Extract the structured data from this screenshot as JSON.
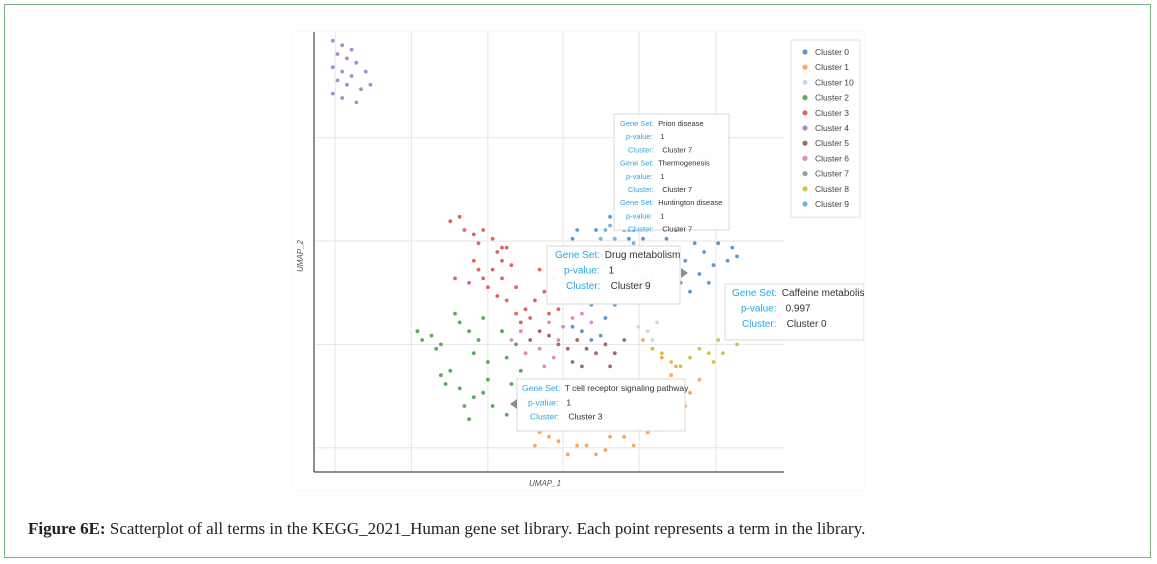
{
  "caption": {
    "label": "Figure 6E:",
    "text": " Scatterplot of all terms in the KEGG_2021_Human gene set library. Each point represents a term in the library."
  },
  "chart_data": {
    "type": "scatter",
    "xlabel": "UMAP_1",
    "ylabel": "UMAP_2",
    "xlim": [
      0,
      100
    ],
    "ylim": [
      0,
      100
    ],
    "grid": true,
    "legend_position": "top-right",
    "series": [
      {
        "name": "Cluster 0",
        "color": "#5b9bd5",
        "points": [
          [
            55,
            53
          ],
          [
            57,
            50
          ],
          [
            58,
            48
          ],
          [
            56,
            45
          ],
          [
            59,
            46
          ],
          [
            60,
            51
          ],
          [
            61,
            49
          ],
          [
            62,
            47
          ],
          [
            58,
            43
          ],
          [
            60,
            42
          ],
          [
            57,
            40
          ],
          [
            61,
            44
          ],
          [
            63,
            45
          ],
          [
            56,
            55
          ],
          [
            54,
            51
          ],
          [
            64,
            50
          ],
          [
            62,
            41
          ],
          [
            59,
            38
          ],
          [
            60,
            55
          ],
          [
            63,
            58
          ],
          [
            66,
            55
          ],
          [
            67,
            58
          ],
          [
            68,
            55
          ],
          [
            70,
            53
          ],
          [
            69,
            57
          ],
          [
            71,
            49
          ],
          [
            72,
            45
          ],
          [
            73,
            51
          ],
          [
            74,
            48
          ],
          [
            75,
            53
          ],
          [
            76,
            50
          ],
          [
            77,
            55
          ],
          [
            79,
            48
          ],
          [
            81,
            52
          ],
          [
            83,
            50
          ],
          [
            85,
            47
          ],
          [
            86,
            52
          ],
          [
            88,
            48
          ],
          [
            89,
            51
          ],
          [
            90,
            49
          ],
          [
            68,
            46
          ],
          [
            70,
            44
          ],
          [
            66,
            42
          ],
          [
            64,
            38
          ],
          [
            62,
            35
          ],
          [
            55,
            33
          ],
          [
            57,
            32
          ],
          [
            59,
            30
          ],
          [
            61,
            31
          ],
          [
            78,
            43
          ],
          [
            80,
            41
          ],
          [
            82,
            45
          ],
          [
            84,
            43
          ],
          [
            67,
            53
          ],
          [
            65,
            56
          ]
        ]
      },
      {
        "name": "Cluster 1",
        "color": "#f5a962",
        "points": [
          [
            70,
            30
          ],
          [
            72,
            28
          ],
          [
            74,
            26
          ],
          [
            76,
            22
          ],
          [
            78,
            20
          ],
          [
            80,
            18
          ],
          [
            82,
            21
          ],
          [
            76,
            17
          ],
          [
            74,
            14
          ],
          [
            72,
            16
          ],
          [
            70,
            12
          ],
          [
            73,
            10
          ],
          [
            66,
            8
          ],
          [
            68,
            6
          ],
          [
            69,
            10
          ],
          [
            62,
            5
          ],
          [
            63,
            8
          ],
          [
            60,
            4
          ],
          [
            58,
            6
          ],
          [
            56,
            6
          ],
          [
            54,
            4
          ],
          [
            52,
            7
          ],
          [
            50,
            8
          ],
          [
            48,
            9
          ],
          [
            47,
            6
          ],
          [
            46,
            12
          ],
          [
            74,
            19
          ],
          [
            77,
            24
          ],
          [
            79,
            15
          ],
          [
            71,
            9
          ]
        ]
      },
      {
        "name": "Cluster 10",
        "color": "#c6dbef",
        "points": [
          [
            71,
            32
          ],
          [
            72,
            30
          ],
          [
            69,
            33
          ],
          [
            73,
            34
          ]
        ]
      },
      {
        "name": "Cluster 2",
        "color": "#5aab5a",
        "points": [
          [
            23,
            30
          ],
          [
            25,
            31
          ],
          [
            26,
            28
          ],
          [
            22,
            32
          ],
          [
            27,
            29
          ],
          [
            30,
            36
          ],
          [
            31,
            34
          ],
          [
            33,
            32
          ],
          [
            34,
            27
          ],
          [
            35,
            30
          ],
          [
            36,
            35
          ],
          [
            37,
            25
          ],
          [
            28,
            20
          ],
          [
            29,
            23
          ],
          [
            31,
            19
          ],
          [
            34,
            17
          ],
          [
            36,
            18
          ],
          [
            37,
            21
          ],
          [
            38,
            15
          ],
          [
            32,
            15
          ],
          [
            40,
            32
          ],
          [
            41,
            26
          ],
          [
            43,
            29
          ],
          [
            44,
            23
          ],
          [
            42,
            20
          ],
          [
            44,
            17
          ],
          [
            41,
            13
          ],
          [
            27,
            22
          ],
          [
            33,
            12
          ]
        ]
      },
      {
        "name": "Cluster 3",
        "color": "#e06666",
        "points": [
          [
            29,
            57
          ],
          [
            31,
            58
          ],
          [
            32,
            55
          ],
          [
            34,
            54
          ],
          [
            35,
            52
          ],
          [
            36,
            55
          ],
          [
            38,
            53
          ],
          [
            39,
            50
          ],
          [
            40,
            48
          ],
          [
            41,
            51
          ],
          [
            42,
            47
          ],
          [
            38,
            46
          ],
          [
            40,
            44
          ],
          [
            36,
            44
          ],
          [
            37,
            42
          ],
          [
            39,
            40
          ],
          [
            41,
            39
          ],
          [
            43,
            36
          ],
          [
            45,
            37
          ],
          [
            47,
            39
          ],
          [
            44,
            34
          ],
          [
            46,
            35
          ],
          [
            49,
            41
          ],
          [
            51,
            44
          ],
          [
            50,
            36
          ],
          [
            52,
            37
          ],
          [
            54,
            39
          ],
          [
            34,
            48
          ],
          [
            35,
            46
          ],
          [
            33,
            43
          ],
          [
            30,
            44
          ],
          [
            48,
            46
          ],
          [
            40,
            51
          ],
          [
            43,
            42
          ]
        ]
      },
      {
        "name": "Cluster 4",
        "color": "#a98bce",
        "points": [
          [
            4,
            98
          ],
          [
            6,
            97
          ],
          [
            8,
            96
          ],
          [
            5,
            95
          ],
          [
            7,
            94
          ],
          [
            9,
            93
          ],
          [
            4,
            92
          ],
          [
            6,
            91
          ],
          [
            8,
            90
          ],
          [
            5,
            89
          ],
          [
            7,
            88
          ],
          [
            10,
            87
          ],
          [
            4,
            86
          ],
          [
            6,
            85
          ],
          [
            9,
            84
          ],
          [
            12,
            88
          ],
          [
            11,
            91
          ]
        ]
      },
      {
        "name": "Cluster 5",
        "color": "#9e6b6b",
        "points": [
          [
            46,
            30
          ],
          [
            48,
            32
          ],
          [
            50,
            31
          ],
          [
            52,
            29
          ],
          [
            54,
            28
          ],
          [
            56,
            30
          ],
          [
            58,
            28
          ],
          [
            60,
            27
          ],
          [
            62,
            29
          ],
          [
            64,
            27
          ],
          [
            66,
            30
          ],
          [
            55,
            25
          ],
          [
            57,
            24
          ],
          [
            63,
            24
          ]
        ]
      },
      {
        "name": "Cluster 6",
        "color": "#e08ac0",
        "points": [
          [
            42,
            30
          ],
          [
            44,
            32
          ],
          [
            48,
            28
          ],
          [
            50,
            34
          ],
          [
            53,
            33
          ],
          [
            55,
            35
          ],
          [
            57,
            36
          ],
          [
            59,
            34
          ],
          [
            52,
            30
          ],
          [
            45,
            27
          ],
          [
            49,
            24
          ],
          [
            51,
            26
          ]
        ]
      },
      {
        "name": "Cluster 7",
        "color": "#9e9e9e",
        "points": [
          [
            77,
            71
          ],
          [
            79,
            70
          ],
          [
            81,
            71
          ],
          [
            82,
            72
          ],
          [
            83,
            70
          ],
          [
            80,
            69
          ],
          [
            78,
            72
          ],
          [
            84,
            72
          ],
          [
            76,
            70
          ],
          [
            74,
            73
          ],
          [
            72,
            74
          ],
          [
            70,
            75
          ]
        ]
      },
      {
        "name": "Cluster 8",
        "color": "#d4c24a",
        "points": [
          [
            72,
            28
          ],
          [
            74,
            27
          ],
          [
            76,
            25
          ],
          [
            78,
            24
          ],
          [
            80,
            26
          ],
          [
            82,
            28
          ],
          [
            84,
            27
          ],
          [
            86,
            30
          ],
          [
            87,
            27
          ],
          [
            88,
            32
          ],
          [
            89,
            34
          ],
          [
            91,
            31
          ],
          [
            90,
            29
          ],
          [
            85,
            25
          ]
        ]
      },
      {
        "name": "Cluster 9",
        "color": "#6fb7d9",
        "points": [
          [
            62,
            55
          ],
          [
            64,
            53
          ],
          [
            66,
            51
          ],
          [
            68,
            52
          ],
          [
            63,
            56
          ],
          [
            67,
            55
          ],
          [
            66,
            49
          ],
          [
            61,
            53
          ]
        ]
      }
    ],
    "annotations": [
      {
        "id": "prion",
        "lines": [
          {
            "key": "Gene Set:",
            "value": "Prion disease"
          },
          {
            "key": "p-value:",
            "value": "1"
          },
          {
            "key": "Cluster:",
            "value": "Cluster 7"
          },
          {
            "key": "Gene Set:",
            "value": "Thermogenesis"
          },
          {
            "key": "p-value:",
            "value": "1"
          },
          {
            "key": "Cluster:",
            "value": "Cluster 7"
          },
          {
            "key": "Gene Set:",
            "value": "Huntington disease"
          },
          {
            "key": "p-value:",
            "value": "1"
          },
          {
            "key": "Cluster:",
            "value": "Cluster 7"
          }
        ]
      },
      {
        "id": "drug",
        "lines": [
          {
            "key": "Gene Set:",
            "value": "Drug metabolism"
          },
          {
            "key": "p-value:",
            "value": "1"
          },
          {
            "key": "Cluster:",
            "value": "Cluster 9"
          }
        ]
      },
      {
        "id": "caffeine",
        "lines": [
          {
            "key": "Gene Set:",
            "value": "Caffeine metabolism"
          },
          {
            "key": "p-value:",
            "value": "0.997"
          },
          {
            "key": "Cluster:",
            "value": "Cluster 0"
          }
        ]
      },
      {
        "id": "tcell",
        "lines": [
          {
            "key": "Gene Set:",
            "value": "T cell receptor signaling pathway"
          },
          {
            "key": "p-value:",
            "value": "1"
          },
          {
            "key": "Cluster:",
            "value": "Cluster 3"
          }
        ]
      }
    ]
  }
}
